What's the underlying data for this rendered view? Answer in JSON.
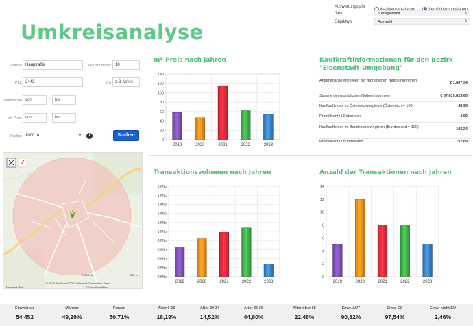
{
  "page_title": "Umkreisanalyse",
  "controls": {
    "auswertungsjahr_label": "Auswertungsjahr",
    "radio_kaufvertrag": "Kaufvertragsdatum",
    "radio_verbuecherung": "Verbücherungsdatum",
    "jahr_label": "Jahr",
    "jahr_value": "5 ausgewählt",
    "objekttyp_label": "Objekttyp",
    "objekttyp_value": "Auswahl"
  },
  "form": {
    "strasse_label": "Strasse",
    "strasse_value": "Hauptraße",
    "hausnummer_label": "Hausnummer",
    "hausnummer_value": "10",
    "plz_label": "PLZ",
    "plz_value": "2443",
    "ort_label": "Ort",
    "ort_placeholder": "z.B. Wien",
    "nutzflaeche_label": "Nutzfläche",
    "preis_label": "m²-Preis",
    "von_placeholder": "von",
    "bis_placeholder": "bis",
    "dash": "-",
    "radius_label": "Radius",
    "radius_value": "1000 m",
    "info_symbol": "i",
    "search_button": "Suchen"
  },
  "map": {
    "scale_ft": "2000 Fuß",
    "scale_m": "500 m",
    "copyright": "© 2023 TomTom © 2023 Microsoft Corporation  Terms",
    "osm": "© OpenStreetMap",
    "bing": "Microsoft Bing"
  },
  "panels": {
    "preis_title": "m²-Preis nach Jahren",
    "kaufkraft_title_1": "Kaufkraftinformationen für den Bezirk",
    "kaufkraft_title_2": "\"Eisenstadt-Umgebung\"",
    "transvol_title": "Transaktionsvolumen nach Jahren",
    "anzahl_title": "Anzahl der Transaktionen nach Jahren"
  },
  "kaufkraft": [
    {
      "label": "Arithmetische Mittelwert der monatlichen Nettoeinkommen",
      "value": "€ 1.867,34"
    },
    {
      "label": "Summe der monatlichen Nettoeinkommen",
      "value": "€ 67.619.823,60"
    },
    {
      "label": "Kaufkraftindex im Österreichvergleich (Österreich = 100)",
      "value": "98,96"
    },
    {
      "label": "Promilleanteil Österreich",
      "value": "4,99"
    },
    {
      "label": "Kaufkraftindex im Bundeslandvergleich (Bundesland = 100)",
      "value": "103,24"
    },
    {
      "label": "Promilleanteil Bundesland",
      "value": "152,69"
    }
  ],
  "stats": [
    {
      "label": "Einwohner",
      "value": "54 452"
    },
    {
      "label": "Männer",
      "value": "49,29%"
    },
    {
      "label": "Frauen",
      "value": "50,71%"
    },
    {
      "label": "Alter 0-19",
      "value": "18,19%"
    },
    {
      "label": "Alter 20-34",
      "value": "14,52%"
    },
    {
      "label": "Alter 35-65",
      "value": "44,80%"
    },
    {
      "label": "Alter über 65",
      "value": "22,48%"
    },
    {
      "label": "Einw. AUT",
      "value": "90,82%"
    },
    {
      "label": "Einw. EU",
      "value": "97,54%"
    },
    {
      "label": "Einw. nicht EU",
      "value": "2,46%"
    }
  ],
  "colors": {
    "accent": "#4cbf7c",
    "bar_2019": "#7c4fb0",
    "bar_2020": "#f08a1c",
    "bar_2021": "#e22a3a",
    "bar_2022": "#3ea84a",
    "bar_2023": "#3a7fc0"
  },
  "chart_data": [
    {
      "type": "bar",
      "title": "m²-Preis nach Jahren",
      "categories": [
        "2019",
        "2020",
        "2021",
        "2022",
        "2023"
      ],
      "values": [
        58,
        47,
        115,
        62,
        54
      ],
      "ylim": [
        0,
        140
      ],
      "yticks": [
        "0",
        "20",
        "40",
        "60",
        "80",
        "100",
        "120",
        "140"
      ],
      "grid": true
    },
    {
      "type": "bar",
      "title": "Transaktionsvolumen nach Jahren",
      "categories": [
        "2019",
        "2020",
        "2021",
        "2022",
        "2023"
      ],
      "values": [
        0.33,
        0.42,
        0.49,
        0.54,
        0.14
      ],
      "ylim": [
        0,
        1
      ],
      "yticks": [
        "0 Mio",
        "0 Mio",
        "0 Mio",
        "0 Mio",
        "0 Mio",
        "1 Mio",
        "1 Mio",
        "1 Mio",
        "1 Mio",
        "1 Mio",
        "1 Mio"
      ],
      "grid": true
    },
    {
      "type": "bar",
      "title": "Anzahl der Transaktionen nach Jahren",
      "categories": [
        "2019",
        "2020",
        "2021",
        "2022",
        "2023"
      ],
      "values": [
        5,
        12,
        8,
        8,
        5
      ],
      "ylim": [
        0,
        14
      ],
      "yticks": [
        "0",
        "2",
        "4",
        "6",
        "8",
        "10",
        "12",
        "14"
      ],
      "grid": true
    }
  ]
}
